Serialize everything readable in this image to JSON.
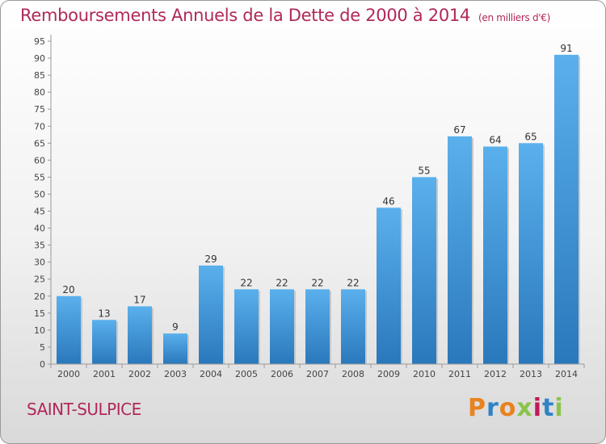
{
  "header": {
    "title": "Remboursements Annuels de la Dette de 2000 à 2014",
    "unit_note": "(en milliers d'€)"
  },
  "footer": {
    "commune": "SAINT-SULPICE",
    "logo": "Proxiti"
  },
  "colors": {
    "accent": "#b0285a",
    "bar_light": "#5ab0ec",
    "bar_dark": "#2a78bc"
  },
  "chart_data": {
    "type": "bar",
    "title": "Remboursements Annuels de la Dette de 2000 à 2014",
    "categories": [
      "2000",
      "2001",
      "2002",
      "2003",
      "2004",
      "2005",
      "2006",
      "2007",
      "2008",
      "2009",
      "2010",
      "2011",
      "2012",
      "2013",
      "2014"
    ],
    "values": [
      20,
      13,
      17,
      9,
      29,
      22,
      22,
      22,
      22,
      46,
      55,
      67,
      64,
      65,
      91
    ],
    "ylim": [
      0,
      95
    ],
    "ytick_step": 5,
    "grid": false,
    "xlabel": "",
    "ylabel": ""
  }
}
